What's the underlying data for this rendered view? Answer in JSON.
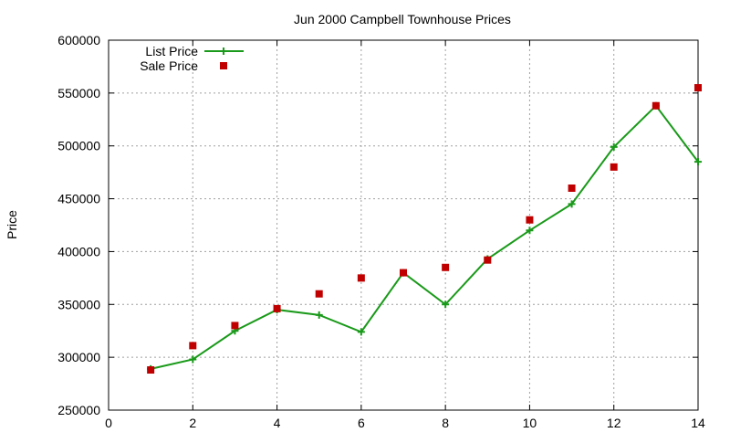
{
  "chart_data": {
    "type": "line",
    "title": "Jun 2000 Campbell Townhouse Prices",
    "xlabel": "",
    "ylabel": "Price",
    "xlim": [
      0,
      14
    ],
    "ylim": [
      250000,
      600000
    ],
    "x_ticks": [
      0,
      2,
      4,
      6,
      8,
      10,
      12,
      14
    ],
    "y_ticks": [
      250000,
      300000,
      350000,
      400000,
      450000,
      500000,
      550000,
      600000
    ],
    "grid": true,
    "legend_position": "top-left",
    "series": [
      {
        "name": "List Price",
        "style": "line-with-plus-markers",
        "color": "#1a9a1a",
        "x": [
          1,
          2,
          3,
          4,
          5,
          6,
          7,
          8,
          9,
          10,
          11,
          12,
          13,
          14
        ],
        "y": [
          289000,
          298000,
          325000,
          345000,
          340000,
          324000,
          380000,
          350000,
          393000,
          420000,
          445000,
          499000,
          538000,
          485000
        ]
      },
      {
        "name": "Sale Price",
        "style": "square-markers",
        "color": "#c00000",
        "x": [
          1,
          2,
          3,
          4,
          5,
          6,
          7,
          8,
          9,
          10,
          11,
          12,
          13,
          14
        ],
        "y": [
          288000,
          311000,
          330000,
          346000,
          360000,
          375000,
          380000,
          385000,
          392000,
          430000,
          460000,
          480000,
          538000,
          555000
        ]
      }
    ]
  }
}
